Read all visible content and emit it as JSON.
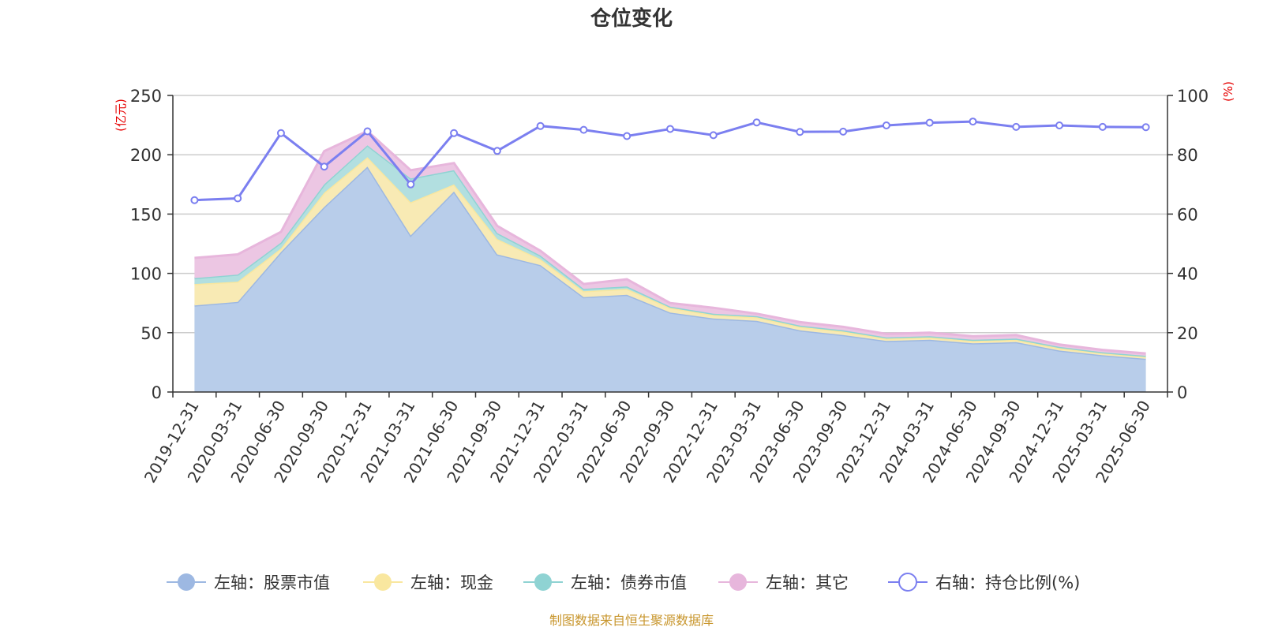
{
  "chart_data": {
    "type": "area",
    "title": "仓位变化",
    "source_text": "制图数据来自恒生聚源数据库",
    "left_axis": {
      "unit": "(亿元)",
      "min": 0,
      "max": 250,
      "ticks": [
        0,
        50,
        100,
        150,
        200,
        250
      ]
    },
    "right_axis": {
      "unit": "(%)",
      "min": 0,
      "max": 100,
      "ticks": [
        0,
        20,
        40,
        60,
        80,
        100
      ]
    },
    "x": [
      "2019-12-31",
      "2020-03-31",
      "2020-06-30",
      "2020-09-30",
      "2020-12-31",
      "2021-03-31",
      "2021-06-30",
      "2021-09-30",
      "2021-12-31",
      "2022-03-31",
      "2022-06-30",
      "2022-09-30",
      "2022-12-31",
      "2023-03-31",
      "2023-06-30",
      "2023-09-30",
      "2023-12-31",
      "2024-03-31",
      "2024-06-30",
      "2024-09-30",
      "2024-12-31",
      "2025-03-31",
      "2025-06-30"
    ],
    "stacked_series": [
      {
        "name": "左轴：股票市值",
        "color": "#9db8e2",
        "fill": "#b8cdea",
        "values": [
          73,
          76,
          118,
          156,
          190,
          132,
          169,
          116,
          107,
          80,
          82,
          67,
          62,
          60,
          52,
          48,
          43,
          44,
          41,
          42,
          35,
          31,
          28
        ]
      },
      {
        "name": "左轴：现金",
        "color": "#f9e79f",
        "fill": "#f8eab4",
        "values": [
          18,
          17,
          3,
          12,
          8,
          28,
          6,
          13,
          5,
          5,
          5,
          4,
          3,
          3,
          3,
          3,
          2,
          2,
          2,
          2,
          2,
          2,
          2
        ]
      },
      {
        "name": "左轴：债券市值",
        "color": "#8fd3d3",
        "fill": "#b2dfe0",
        "values": [
          5,
          6,
          5,
          7,
          10,
          20,
          12,
          5,
          3,
          2,
          2,
          1,
          1,
          1,
          1,
          1,
          1,
          1,
          1,
          1,
          1,
          0.5,
          0.5
        ]
      },
      {
        "name": "左轴：其它",
        "color": "#e7b6dc",
        "fill": "#ecc6e3",
        "values": [
          17,
          17,
          9,
          28,
          12,
          7,
          6,
          6,
          4,
          4,
          6,
          3,
          5,
          2,
          3,
          3,
          3,
          3,
          3,
          3,
          2,
          2,
          2
        ]
      }
    ],
    "line_series": {
      "name": "右轴：持仓比例(%)",
      "color": "#7b7ff0",
      "values": [
        64.7,
        65.3,
        87.3,
        76.0,
        87.9,
        70.0,
        87.3,
        81.3,
        89.7,
        88.4,
        86.3,
        88.7,
        86.6,
        90.9,
        87.7,
        87.8,
        89.9,
        90.8,
        91.2,
        89.4,
        89.9,
        89.4,
        89.3
      ]
    },
    "grid": true,
    "legend_position": "bottom"
  }
}
